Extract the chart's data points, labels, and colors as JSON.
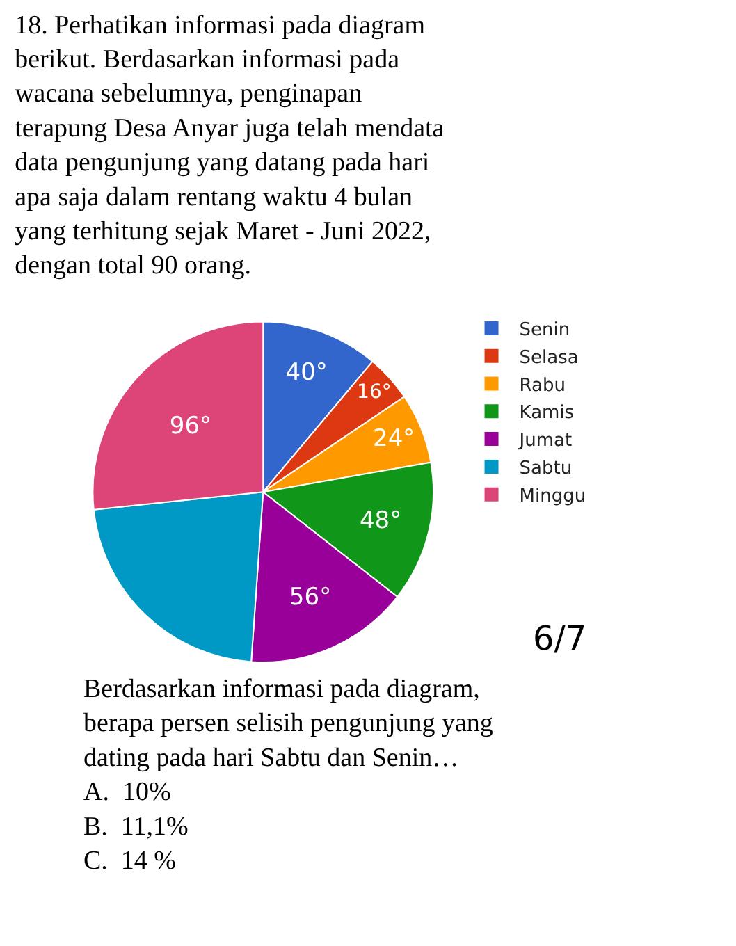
{
  "chart_data": {
    "type": "pie",
    "title": "18. Perhatikan informasi pada diagram\nberikut. Berdasarkan informasi pada\nwacana sebelumnya, penginapan\nterapung Desa Anyar juga telah mendata\ndata pengunjung yang datang pada hari\napa saja dalam rentang waktu 4 bulan\nyang terhitung sejak Maret - Juni 2022,\ndengan total 90 orang.",
    "categories": [
      "Senin",
      "Selasa",
      "Rabu",
      "Kamis",
      "Jumat",
      "Sabtu",
      "Minggu"
    ],
    "values": [
      40,
      16,
      24,
      48,
      56,
      80,
      96
    ],
    "value_labels": [
      "40°",
      "16°",
      "24°",
      "48°",
      "56°",
      null,
      "96°"
    ],
    "colors": [
      "#3366cc",
      "#dc3912",
      "#ff9900",
      "#109618",
      "#990099",
      "#0099c6",
      "#dd4477"
    ],
    "legend": "right",
    "annotations": [
      "6/7",
      "Berdasarkan informasi pada diagram,\nberapa persen selisih pengunjung yang\ndating pada hari Sabtu dan Senin…\nA.  10%\nB.  11,1%\nC.  14 %"
    ]
  }
}
